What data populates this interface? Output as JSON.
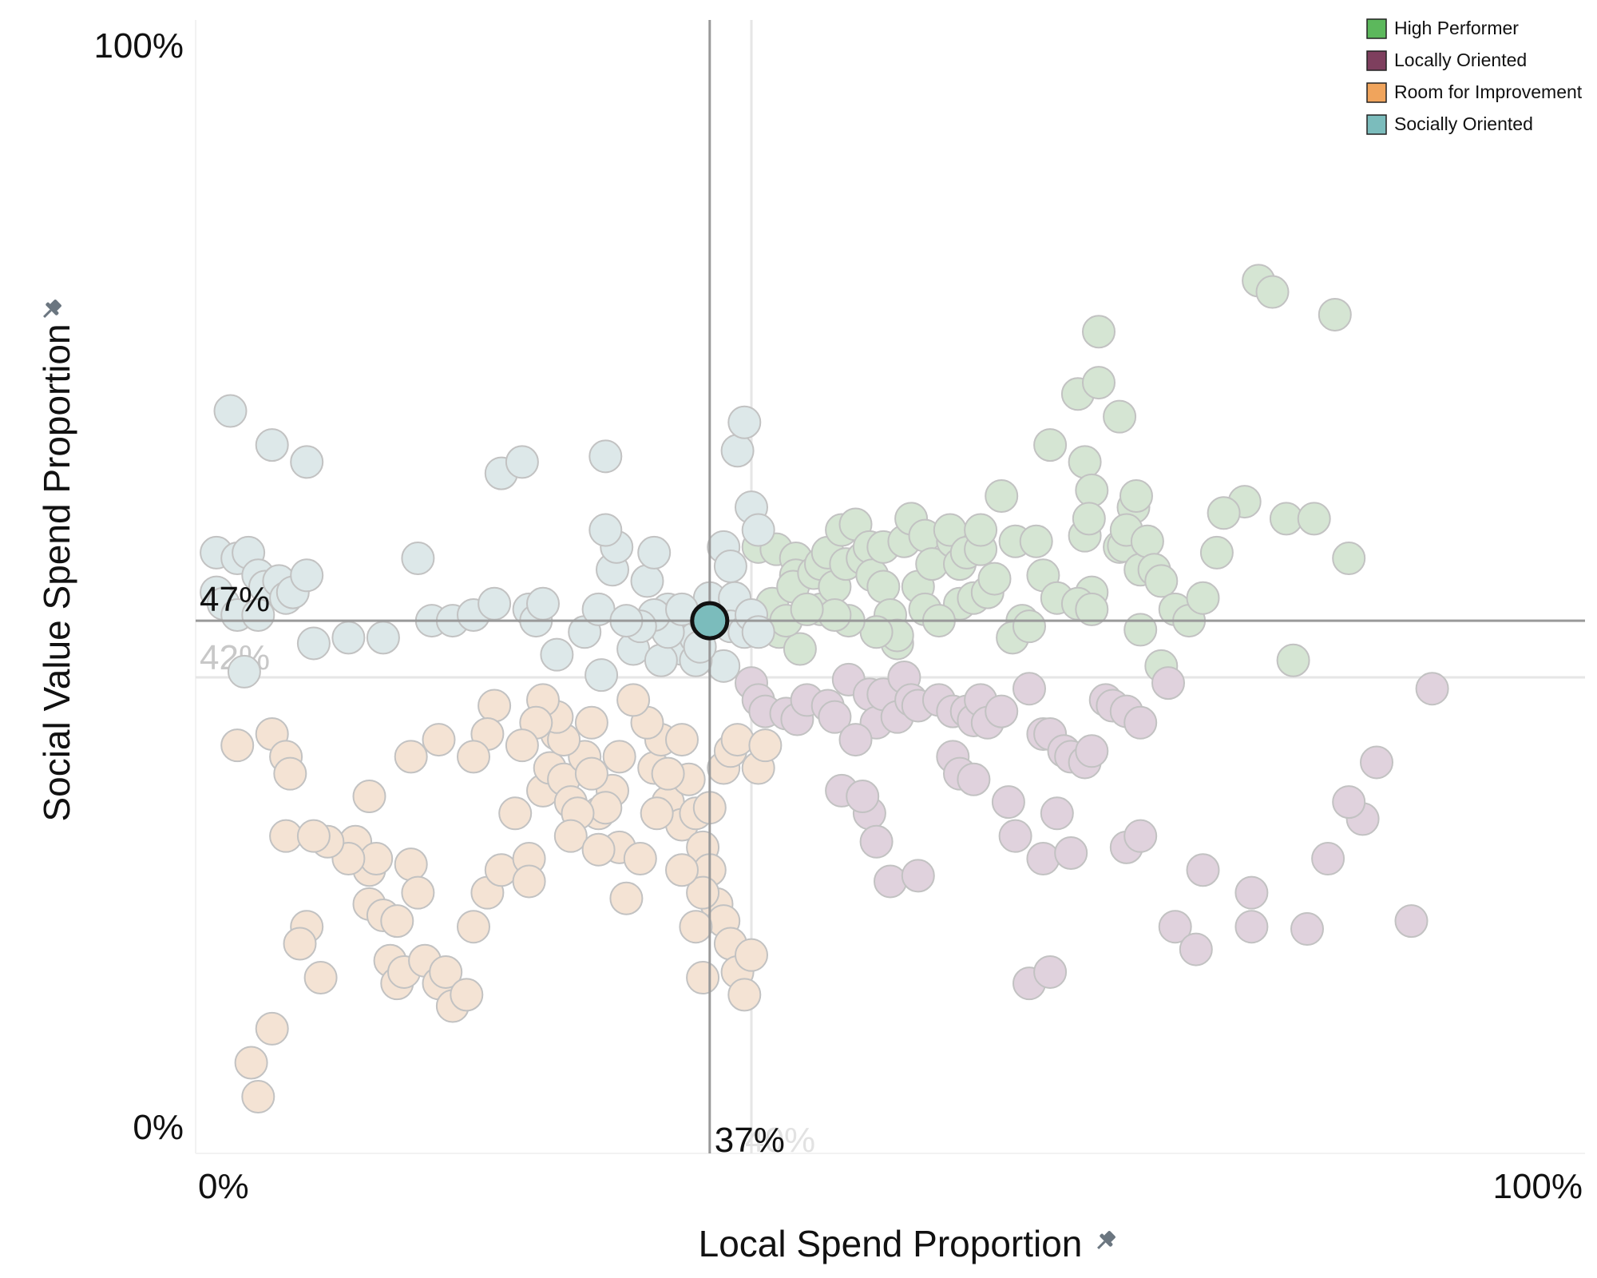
{
  "chart_data": {
    "type": "scatter",
    "xlabel": "Local Spend Proportion",
    "ylabel": "Social Value Spend Proportion",
    "x_ticks": [
      "0%",
      "100%"
    ],
    "y_ticks": [
      "0%",
      "100%"
    ],
    "xlim": [
      0,
      100
    ],
    "ylim": [
      0,
      100
    ],
    "grid": false,
    "legend_position": "top-right",
    "axis_icon": "pin-icon",
    "reference_lines": {
      "active": {
        "x": 37,
        "y": 47,
        "x_label": "37%",
        "y_label": "47%",
        "color": "#999999"
      },
      "faded": {
        "x": 40,
        "y": 42,
        "x_label": "40%",
        "y_label": "42%",
        "color": "#e6e6e6"
      }
    },
    "highlight_point": {
      "x": 37,
      "y": 47,
      "series": "Socially Oriented"
    },
    "series": [
      {
        "name": "High Performer",
        "color": "#5cb85c",
        "faded_color": "#d5e5d3",
        "points": [
          [
            40.5,
            53.5
          ],
          [
            41.8,
            53.3
          ],
          [
            41.5,
            48.5
          ],
          [
            42,
            46
          ],
          [
            43.2,
            52.5
          ],
          [
            43.2,
            51
          ],
          [
            43.5,
            44.5
          ],
          [
            43,
            50
          ],
          [
            44.5,
            51.2
          ],
          [
            45,
            52
          ],
          [
            45,
            48
          ],
          [
            45.5,
            53
          ],
          [
            46.5,
            55
          ],
          [
            46,
            50
          ],
          [
            46.8,
            52
          ],
          [
            47.5,
            55.5
          ],
          [
            48,
            52.5
          ],
          [
            48.5,
            53.5
          ],
          [
            48.7,
            51
          ],
          [
            49.5,
            53.5
          ],
          [
            49.5,
            50
          ],
          [
            50,
            47.5
          ],
          [
            50.5,
            45
          ],
          [
            51,
            54
          ],
          [
            51.5,
            56
          ],
          [
            52,
            50
          ],
          [
            52.5,
            54.5
          ],
          [
            53,
            52
          ],
          [
            54.5,
            54
          ],
          [
            54.3,
            55
          ],
          [
            55,
            52
          ],
          [
            55.5,
            53
          ],
          [
            55,
            48.5
          ],
          [
            56,
            49
          ],
          [
            56.5,
            53.3
          ],
          [
            57,
            49.5
          ],
          [
            56.5,
            55
          ],
          [
            58,
            58
          ],
          [
            59,
            54
          ],
          [
            59.5,
            47
          ],
          [
            60.5,
            54
          ],
          [
            61.5,
            62.5
          ],
          [
            63.5,
            67
          ],
          [
            64,
            61
          ],
          [
            64,
            54.5
          ],
          [
            64.5,
            58.5
          ],
          [
            64.3,
            56
          ],
          [
            64.5,
            49.5
          ],
          [
            65,
            68
          ],
          [
            65,
            72.5
          ],
          [
            66.5,
            65
          ],
          [
            66.5,
            53.5
          ],
          [
            66.8,
            53.6
          ],
          [
            67.5,
            57
          ],
          [
            67.7,
            58
          ],
          [
            67,
            55
          ],
          [
            68,
            51.5
          ],
          [
            68.5,
            54
          ],
          [
            69,
            51.5
          ],
          [
            69.5,
            50.5
          ],
          [
            70.5,
            48
          ],
          [
            71.5,
            47
          ],
          [
            72.5,
            49
          ],
          [
            73.5,
            53
          ],
          [
            68,
            46.2
          ],
          [
            58.8,
            45.5
          ],
          [
            57.5,
            50.7
          ],
          [
            61,
            51
          ],
          [
            62,
            49
          ],
          [
            63.5,
            48.5
          ],
          [
            64.5,
            48
          ],
          [
            50.5,
            45.7
          ],
          [
            49,
            46
          ],
          [
            47,
            47
          ],
          [
            42.5,
            47
          ],
          [
            46,
            47.5
          ],
          [
            44,
            48
          ],
          [
            52.5,
            48
          ],
          [
            53.5,
            47
          ],
          [
            60,
            46.5
          ],
          [
            69.5,
            43
          ],
          [
            79,
            43.5
          ],
          [
            78.5,
            56
          ],
          [
            75.5,
            57.5
          ],
          [
            74,
            56.5
          ],
          [
            80.5,
            56
          ],
          [
            82,
            74
          ],
          [
            76.5,
            77
          ],
          [
            77.5,
            76
          ],
          [
            83,
            52.5
          ]
        ]
      },
      {
        "name": "Locally Oriented",
        "color": "#7e3f5e",
        "faded_color": "#e0d2dd",
        "points": [
          [
            40,
            41.5
          ],
          [
            40.5,
            40
          ],
          [
            41,
            39
          ],
          [
            42.5,
            38.8
          ],
          [
            43.3,
            38.3
          ],
          [
            44,
            40
          ],
          [
            45.5,
            39.5
          ],
          [
            46,
            38.5
          ],
          [
            47,
            41.8
          ],
          [
            48.5,
            40.5
          ],
          [
            49,
            38
          ],
          [
            49.5,
            40.5
          ],
          [
            50.5,
            38.5
          ],
          [
            51,
            42
          ],
          [
            51.5,
            40
          ],
          [
            52,
            39.5
          ],
          [
            53.5,
            40
          ],
          [
            54.5,
            39
          ],
          [
            55.5,
            39
          ],
          [
            56,
            38.2
          ],
          [
            56.5,
            40
          ],
          [
            57,
            38
          ],
          [
            58,
            39
          ],
          [
            60,
            41
          ],
          [
            61,
            37
          ],
          [
            61.5,
            37
          ],
          [
            62.5,
            35.5
          ],
          [
            63,
            35
          ],
          [
            64,
            34.5
          ],
          [
            64.5,
            35.5
          ],
          [
            65.5,
            40
          ],
          [
            66,
            39.5
          ],
          [
            67,
            39
          ],
          [
            68,
            38
          ],
          [
            70,
            41.5
          ],
          [
            46.5,
            32
          ],
          [
            47.5,
            36.5
          ],
          [
            48.5,
            30
          ],
          [
            48,
            31.5
          ],
          [
            49,
            27.5
          ],
          [
            50,
            24
          ],
          [
            52,
            24.5
          ],
          [
            54.5,
            35
          ],
          [
            55,
            33.5
          ],
          [
            56,
            33
          ],
          [
            58.5,
            31
          ],
          [
            59,
            28
          ],
          [
            61,
            26
          ],
          [
            62,
            30
          ],
          [
            63,
            26.5
          ],
          [
            67,
            27
          ],
          [
            68,
            28
          ],
          [
            70.5,
            20
          ],
          [
            72,
            18
          ],
          [
            76,
            20
          ],
          [
            80,
            19.8
          ],
          [
            84,
            29.5
          ],
          [
            83,
            31
          ],
          [
            85,
            34.5
          ],
          [
            87.5,
            20.5
          ],
          [
            60,
            15
          ],
          [
            61.5,
            16
          ],
          [
            72.5,
            25
          ],
          [
            76,
            23
          ],
          [
            81.5,
            26
          ],
          [
            89,
            41
          ]
        ]
      },
      {
        "name": "Room for Improvement",
        "color": "#f0a45c",
        "faded_color": "#f4e3d4",
        "points": [
          [
            3,
            36
          ],
          [
            5.5,
            37
          ],
          [
            6.5,
            35
          ],
          [
            6.8,
            33.5
          ],
          [
            6.5,
            28
          ],
          [
            11.5,
            27.5
          ],
          [
            12.5,
            25
          ],
          [
            13,
            26
          ],
          [
            12.5,
            22
          ],
          [
            13.5,
            21
          ],
          [
            14,
            17
          ],
          [
            14.5,
            15
          ],
          [
            15,
            16
          ],
          [
            15.5,
            25.5
          ],
          [
            16,
            23
          ],
          [
            16.5,
            17
          ],
          [
            17.5,
            15
          ],
          [
            18,
            16
          ],
          [
            18.5,
            13
          ],
          [
            19.5,
            14
          ],
          [
            20,
            20
          ],
          [
            21,
            23
          ],
          [
            22,
            25
          ],
          [
            23,
            30
          ],
          [
            24,
            26
          ],
          [
            25,
            32
          ],
          [
            25.5,
            34
          ],
          [
            26,
            37
          ],
          [
            26.5,
            33
          ],
          [
            27,
            31
          ],
          [
            28,
            35
          ],
          [
            28.5,
            38
          ],
          [
            29,
            30
          ],
          [
            30,
            32
          ],
          [
            30.5,
            27
          ],
          [
            31,
            22.5
          ],
          [
            32,
            26
          ],
          [
            33,
            34
          ],
          [
            33.5,
            36.5
          ],
          [
            34,
            31
          ],
          [
            35,
            29
          ],
          [
            35.5,
            33
          ],
          [
            36,
            30
          ],
          [
            36.5,
            27
          ],
          [
            37,
            25
          ],
          [
            37.5,
            22
          ],
          [
            38,
            20.5
          ],
          [
            38.5,
            18.5
          ],
          [
            39,
            16
          ],
          [
            39.5,
            14
          ],
          [
            40,
            17.5
          ],
          [
            36,
            20
          ],
          [
            36.5,
            23
          ],
          [
            37,
            30.5
          ],
          [
            38,
            34
          ],
          [
            38.5,
            35.5
          ],
          [
            39,
            36.5
          ],
          [
            40.5,
            34
          ],
          [
            41,
            36
          ],
          [
            35,
            36.5
          ],
          [
            34,
            33.5
          ],
          [
            33.2,
            30
          ],
          [
            32.5,
            38
          ],
          [
            31.5,
            40
          ],
          [
            30.5,
            35
          ],
          [
            29.5,
            30.5
          ],
          [
            28.5,
            33.5
          ],
          [
            27.5,
            30
          ],
          [
            27,
            28
          ],
          [
            26.5,
            36.5
          ],
          [
            26,
            38.5
          ],
          [
            25,
            40
          ],
          [
            24.5,
            38
          ],
          [
            23.5,
            36
          ],
          [
            21.5,
            39.5
          ],
          [
            21,
            37
          ],
          [
            20,
            35
          ],
          [
            17.5,
            36.5
          ],
          [
            15.5,
            35
          ],
          [
            12.5,
            31.5
          ],
          [
            11,
            26
          ],
          [
            9.5,
            27.5
          ],
          [
            8.5,
            28
          ],
          [
            8,
            20
          ],
          [
            7.5,
            18.5
          ],
          [
            9,
            15.5
          ],
          [
            4.5,
            5
          ],
          [
            5.5,
            11
          ],
          [
            4,
            8
          ],
          [
            14.5,
            20.5
          ],
          [
            29,
            26.8
          ],
          [
            35,
            25
          ],
          [
            24,
            24
          ],
          [
            36.5,
            15.5
          ]
        ]
      },
      {
        "name": "Socially Oriented",
        "color": "#7bbcbc",
        "faded_color": "#dde8e9",
        "points": [
          [
            2.5,
            65.5
          ],
          [
            5.5,
            62.5
          ],
          [
            8,
            61
          ],
          [
            1.5,
            53
          ],
          [
            3,
            52.5
          ],
          [
            3.8,
            53
          ],
          [
            4.5,
            51
          ],
          [
            5,
            50
          ],
          [
            6,
            50.5
          ],
          [
            6.5,
            49
          ],
          [
            7,
            49.5
          ],
          [
            8,
            51
          ],
          [
            1.5,
            49.5
          ],
          [
            2,
            48.5
          ],
          [
            3,
            47.5
          ],
          [
            4.5,
            47.5
          ],
          [
            8.5,
            45
          ],
          [
            11,
            45.5
          ],
          [
            13.5,
            45.5
          ],
          [
            16,
            52.5
          ],
          [
            17,
            47
          ],
          [
            18.5,
            47
          ],
          [
            20,
            47.5
          ],
          [
            21.5,
            48.5
          ],
          [
            22,
            60
          ],
          [
            23.5,
            61
          ],
          [
            24,
            48
          ],
          [
            24.5,
            47
          ],
          [
            25,
            48.5
          ],
          [
            26,
            44
          ],
          [
            28,
            46
          ],
          [
            29,
            48
          ],
          [
            29.2,
            42.2
          ],
          [
            31.5,
            44.5
          ],
          [
            34,
            48
          ],
          [
            35,
            44.5
          ],
          [
            35.5,
            46.5
          ],
          [
            36,
            45.5
          ],
          [
            36.5,
            47.5
          ],
          [
            37,
            49
          ],
          [
            38,
            53.5
          ],
          [
            38.5,
            51.8
          ],
          [
            38.8,
            49
          ],
          [
            39,
            62
          ],
          [
            39.5,
            64.5
          ],
          [
            40,
            57
          ],
          [
            40.5,
            55
          ],
          [
            38.5,
            46.5
          ],
          [
            39.5,
            46
          ],
          [
            40,
            47.5
          ],
          [
            40.5,
            46
          ],
          [
            38,
            43
          ],
          [
            36,
            43.5
          ],
          [
            33.5,
            43.5
          ],
          [
            34,
            46
          ],
          [
            33,
            47.5
          ],
          [
            32,
            46.5
          ],
          [
            31,
            47
          ],
          [
            35,
            48
          ],
          [
            36.3,
            44.7
          ],
          [
            29.5,
            61.5
          ],
          [
            30,
            51.5
          ],
          [
            32.5,
            50.5
          ],
          [
            33,
            53
          ],
          [
            30.3,
            53.5
          ],
          [
            29.5,
            55
          ],
          [
            3.5,
            42.5
          ]
        ]
      }
    ]
  }
}
